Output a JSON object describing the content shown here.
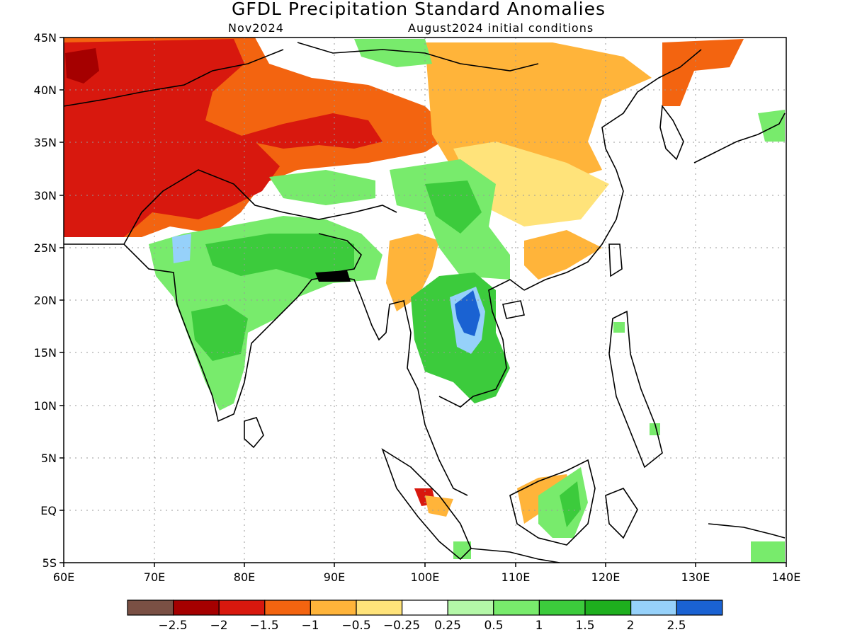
{
  "title": "GFDL Precipitation Standard Anomalies",
  "subtitle_left": "Nov2024",
  "subtitle_right": "August2024 initial conditions",
  "lat_labels": [
    "45N",
    "40N",
    "35N",
    "30N",
    "25N",
    "20N",
    "15N",
    "10N",
    "5N",
    "EQ",
    "5S"
  ],
  "lon_labels": [
    "60E",
    "70E",
    "80E",
    "90E",
    "100E",
    "110E",
    "120E",
    "130E",
    "140E"
  ],
  "colorbar": {
    "colors": [
      "#7a5044",
      "#a50000",
      "#d8180e",
      "#f36410",
      "#ffb43a",
      "#ffe37a",
      "#ffffff",
      "#b4f7a8",
      "#78eb6c",
      "#3ccb3c",
      "#1eaf1e",
      "#96d1fa",
      "#1a62d2"
    ],
    "labels": [
      "−2.5",
      "−2",
      "−1.5",
      "−1",
      "−0.5",
      "−0.25",
      "0.25",
      "0.5",
      "1",
      "1.5",
      "2",
      "2.5"
    ]
  }
}
